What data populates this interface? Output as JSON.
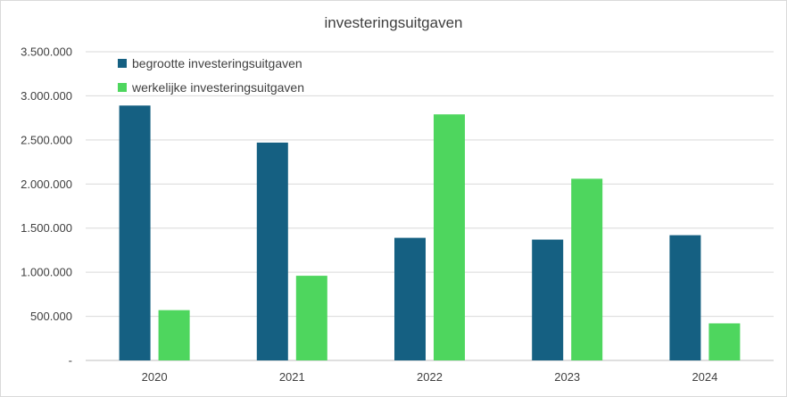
{
  "chart_data": {
    "type": "bar",
    "title": "investeringsuitgaven",
    "xlabel": "",
    "ylabel": "",
    "categories": [
      "2020",
      "2021",
      "2022",
      "2023",
      "2024"
    ],
    "series": [
      {
        "name": "begrootte investeringsuitgaven",
        "color": "#156082",
        "values": [
          2890000,
          2470000,
          1390000,
          1370000,
          1420000
        ]
      },
      {
        "name": "werkelijke investeringsuitgaven",
        "color": "#4ed65e",
        "values": [
          570000,
          960000,
          2790000,
          2060000,
          420000
        ]
      }
    ],
    "ylim": [
      0,
      3500000
    ],
    "y_ticks": [
      0,
      500000,
      1000000,
      1500000,
      2000000,
      2500000,
      3000000,
      3500000
    ],
    "y_tick_labels": [
      "-",
      "500.000",
      "1.000.000",
      "1.500.000",
      "2.000.000",
      "2.500.000",
      "3.000.000",
      "3.500.000"
    ],
    "grid": true,
    "legend_position": "top-left"
  }
}
